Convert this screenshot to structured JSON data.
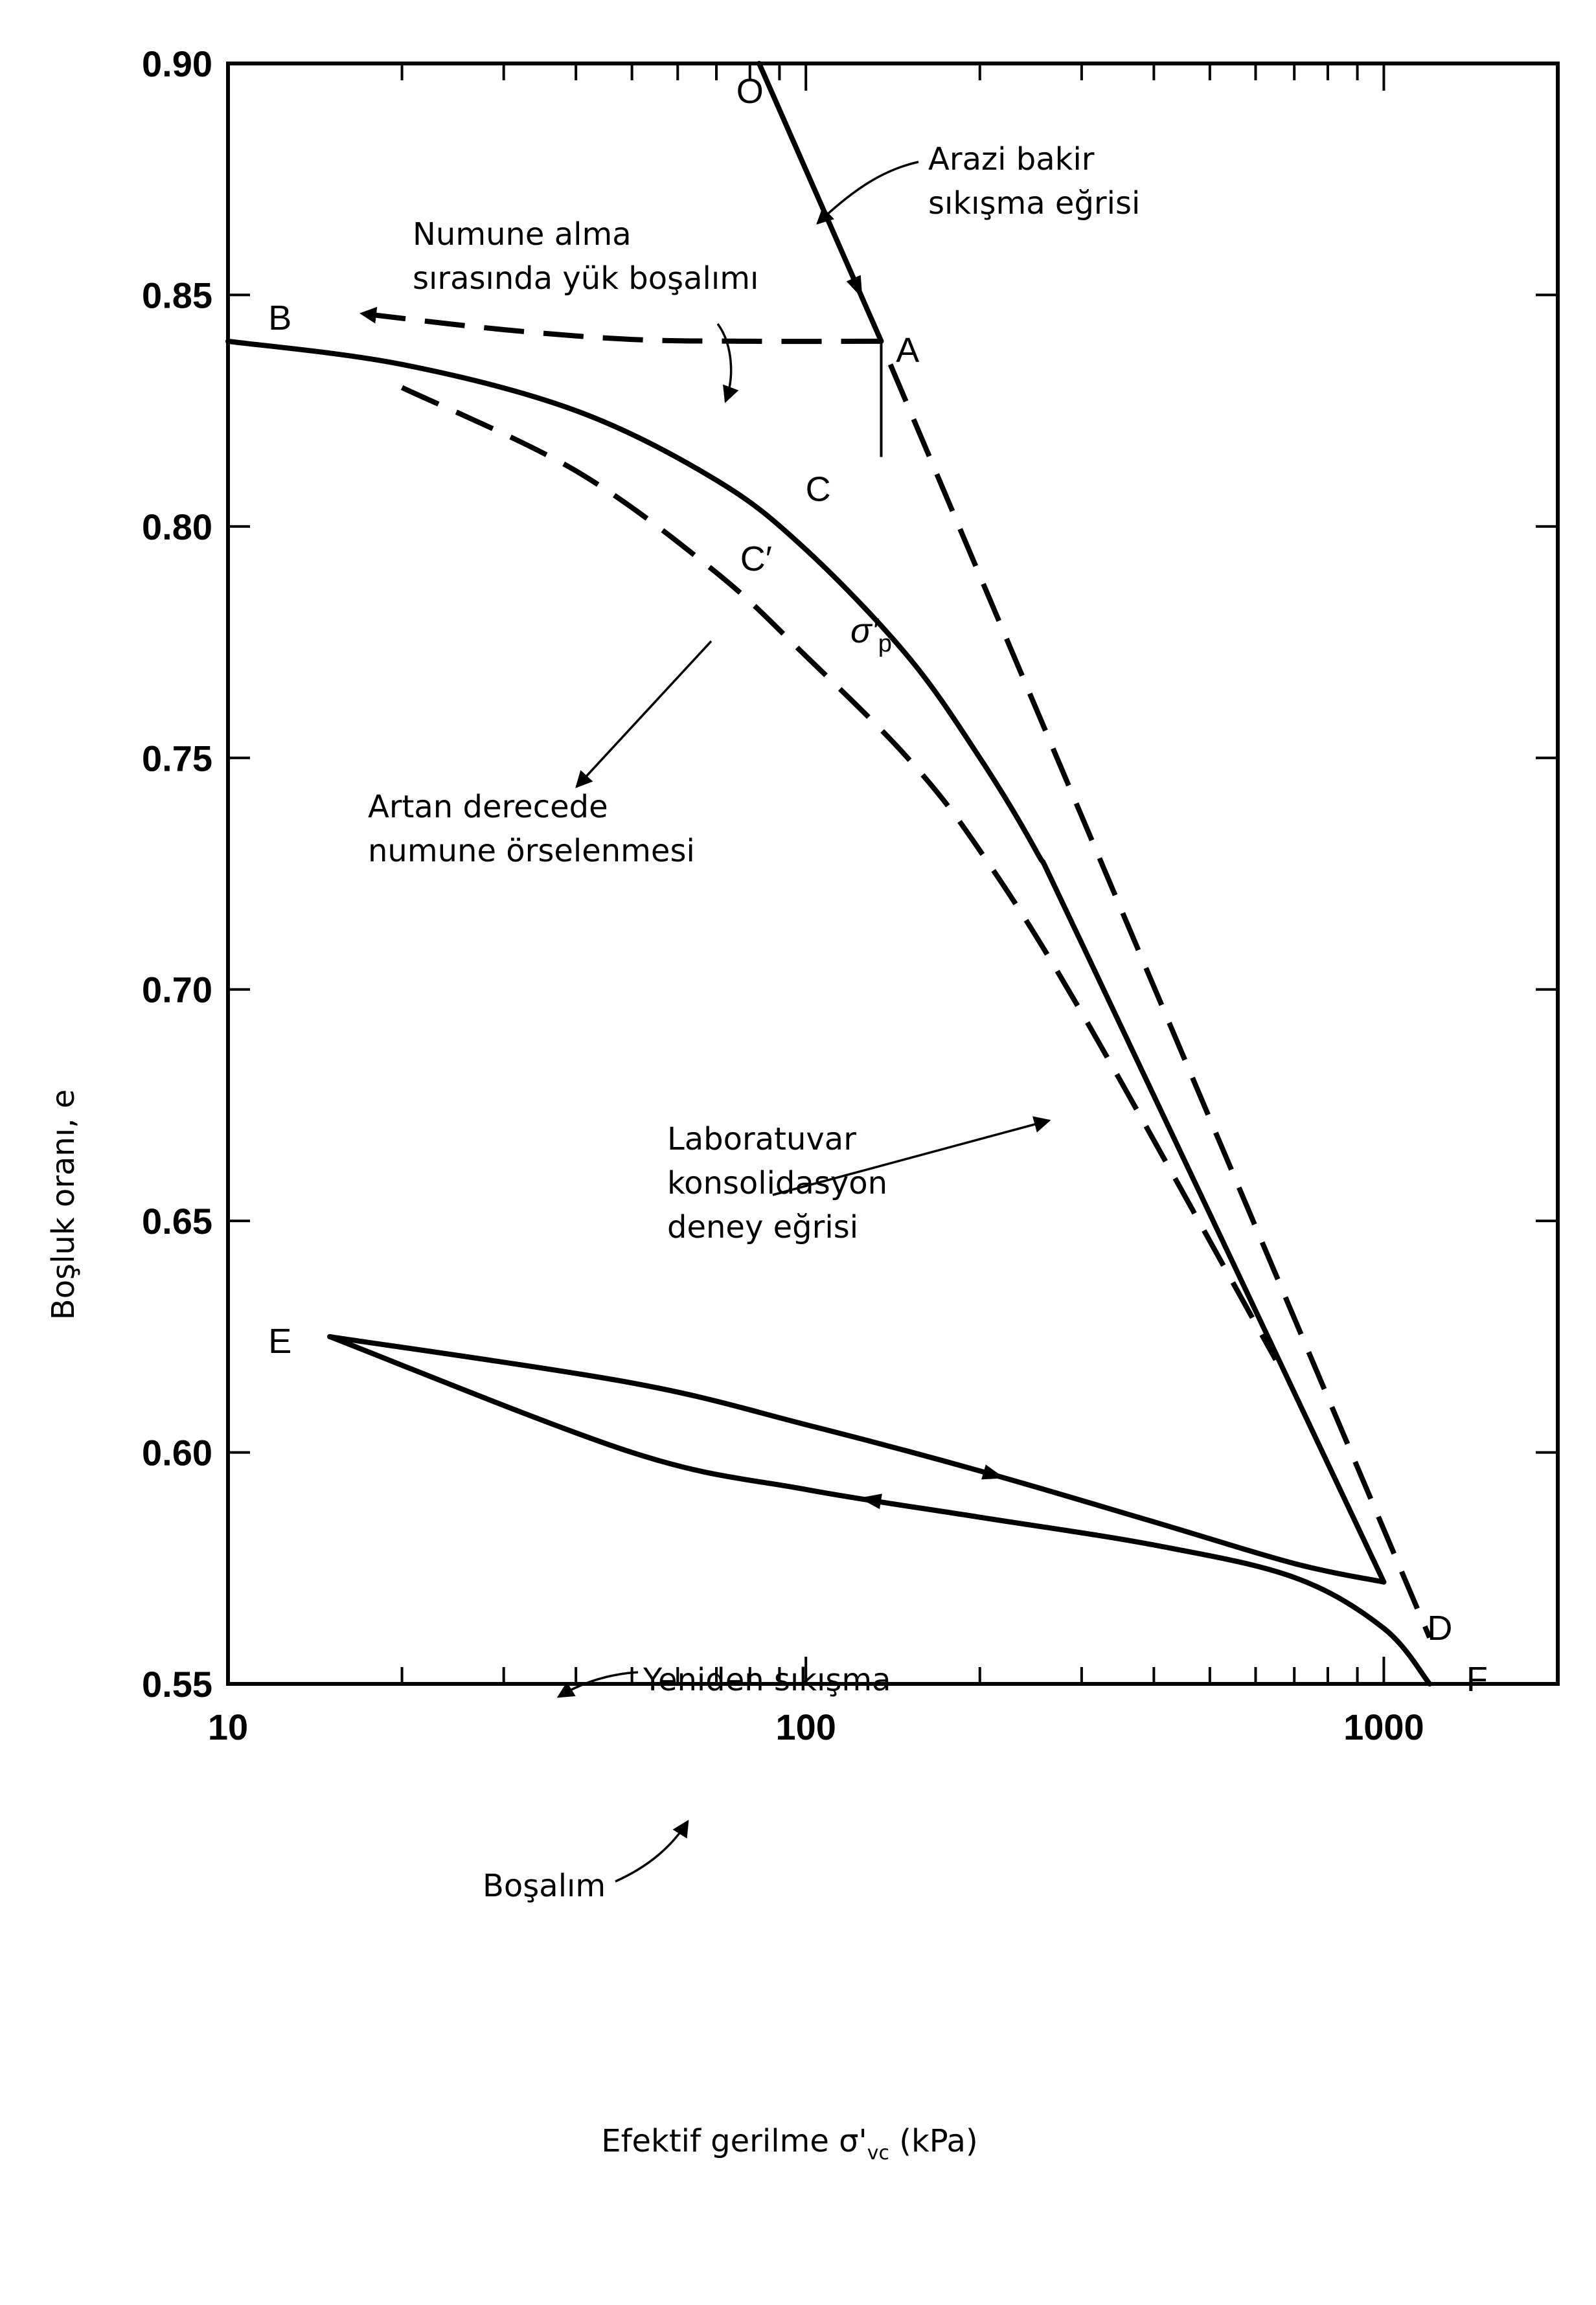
{
  "chart_data": {
    "type": "line",
    "xscale": "log",
    "xlim": [
      10,
      2000
    ],
    "ylim": [
      0.55,
      0.9
    ],
    "xlabel": "Efektif gerilme σ'vc (kPa)",
    "ylabel": "Boşluk oranı, e",
    "x_ticks": [
      "10",
      "100",
      "1000"
    ],
    "y_ticks": [
      "0.90",
      "0.85",
      "0.80",
      "0.75",
      "0.70",
      "0.65",
      "0.60",
      "0.55"
    ],
    "grid": false,
    "series": [
      {
        "key": "field_OA",
        "style": "solid",
        "x": [
          83,
          135
        ],
        "y": [
          0.9,
          0.84
        ]
      },
      {
        "key": "unloading_AB",
        "style": "dashed",
        "x": [
          135,
          80,
          50,
          30,
          17
        ],
        "y": [
          0.84,
          0.84,
          0.8404,
          0.8425,
          0.846
        ]
      },
      {
        "key": "field_AD",
        "style": "dashed",
        "x": [
          140,
          1200
        ],
        "y": [
          0.835,
          0.56
        ]
      },
      {
        "key": "lab_curve",
        "style": "solid",
        "x": [
          10,
          20,
          40,
          70,
          100,
          150,
          200,
          250,
          300,
          1000
        ],
        "y": [
          0.84,
          0.835,
          0.825,
          0.81,
          0.795,
          0.772,
          0.75,
          0.73,
          0.71,
          0.572
        ]
      },
      {
        "key": "disturbed_curve",
        "style": "dashed",
        "x": [
          20,
          40,
          70,
          100,
          150,
          200,
          300,
          650
        ],
        "y": [
          0.83,
          0.812,
          0.79,
          0.772,
          0.75,
          0.73,
          0.695,
          0.62
        ]
      },
      {
        "key": "reloading",
        "style": "solid",
        "x": [
          15,
          50,
          100,
          200,
          400,
          700,
          1000
        ],
        "y": [
          0.625,
          0.615,
          0.606,
          0.596,
          0.585,
          0.576,
          0.572
        ]
      },
      {
        "key": "unloading_DE",
        "style": "solid",
        "x": [
          1200,
          1000,
          700,
          400,
          200,
          100,
          50,
          15
        ],
        "y": [
          0.55,
          0.562,
          0.573,
          0.58,
          0.586,
          0.592,
          0.6,
          0.625
        ]
      }
    ],
    "point_labels": [
      {
        "text": "O",
        "x": 80,
        "y": 0.894
      },
      {
        "text": "A",
        "x": 150,
        "y": 0.838
      },
      {
        "text": "B",
        "x": 12.3,
        "y": 0.845
      },
      {
        "text": "C",
        "x": 105,
        "y": 0.808
      },
      {
        "text": "C′",
        "x": 82,
        "y": 0.793
      },
      {
        "text": "D",
        "x": 1250,
        "y": 0.562
      },
      {
        "text": "E",
        "x": 12.3,
        "y": 0.624
      },
      {
        "text": "F",
        "x": 1450,
        "y": 0.551
      },
      {
        "text": "σ′p",
        "x": 135,
        "y": 0.802
      }
    ],
    "annotations": {
      "field_curve": [
        "Arazi bakir",
        "sıkışma eğrisi"
      ],
      "sampling_unload": [
        "Numune alma",
        "sırasında yük boşalımı"
      ],
      "disturbance": [
        "Artan derecede",
        "numune örselenmesi"
      ],
      "lab_curve": [
        "Laboratuvar",
        "konsolidasyon",
        "deney eğrisi"
      ],
      "reloading": "Yeniden sıkışma",
      "unloading": "Boşalım"
    }
  }
}
